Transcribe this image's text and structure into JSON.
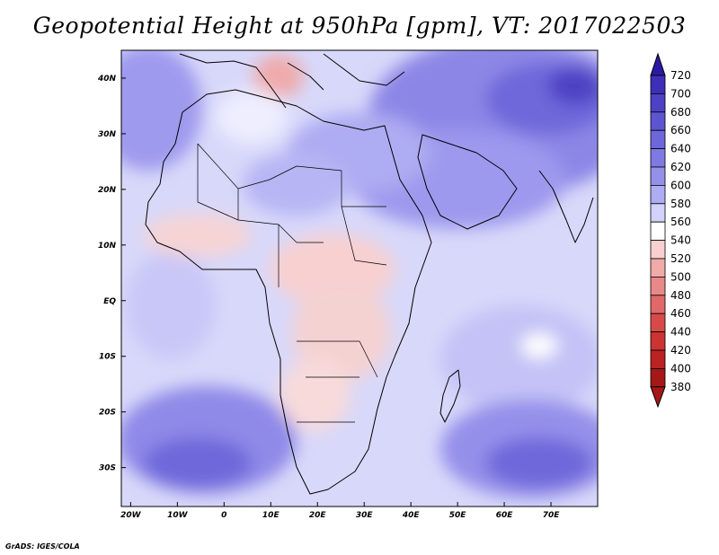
{
  "title": "Geopotential Height at 950hPa [gpm], VT: 2017022503",
  "credit": "GrADS: IGES/COLA",
  "map": {
    "lat_labels": [
      "40N",
      "30N",
      "20N",
      "10N",
      "EQ",
      "10S",
      "20S",
      "30S"
    ],
    "lon_labels": [
      "20W",
      "10W",
      "0",
      "10E",
      "20E",
      "30E",
      "40E",
      "50E",
      "60E",
      "70E"
    ],
    "lon_range": [
      -22,
      80
    ],
    "lat_range": [
      -37,
      45
    ]
  },
  "colorbar": {
    "levels": [
      "720",
      "700",
      "680",
      "660",
      "640",
      "620",
      "600",
      "580",
      "560",
      "540",
      "520",
      "500",
      "480",
      "460",
      "440",
      "420",
      "400",
      "380"
    ],
    "colors": [
      "#2a1aa3",
      "#3d2fb8",
      "#4d42c4",
      "#5d55d0",
      "#6e67da",
      "#7f7ae2",
      "#9490ea",
      "#aeacf2",
      "#d2d2fa",
      "#ffffff",
      "#f8d0d0",
      "#f0aaaa",
      "#e88888",
      "#e06868",
      "#d84a4a",
      "#cc3333",
      "#bb2222",
      "#a41818"
    ]
  },
  "legend_colors": {
    "high": "#4d42c4",
    "low": "#e06868",
    "neutral": "#ffffff",
    "coast": "#000000"
  }
}
